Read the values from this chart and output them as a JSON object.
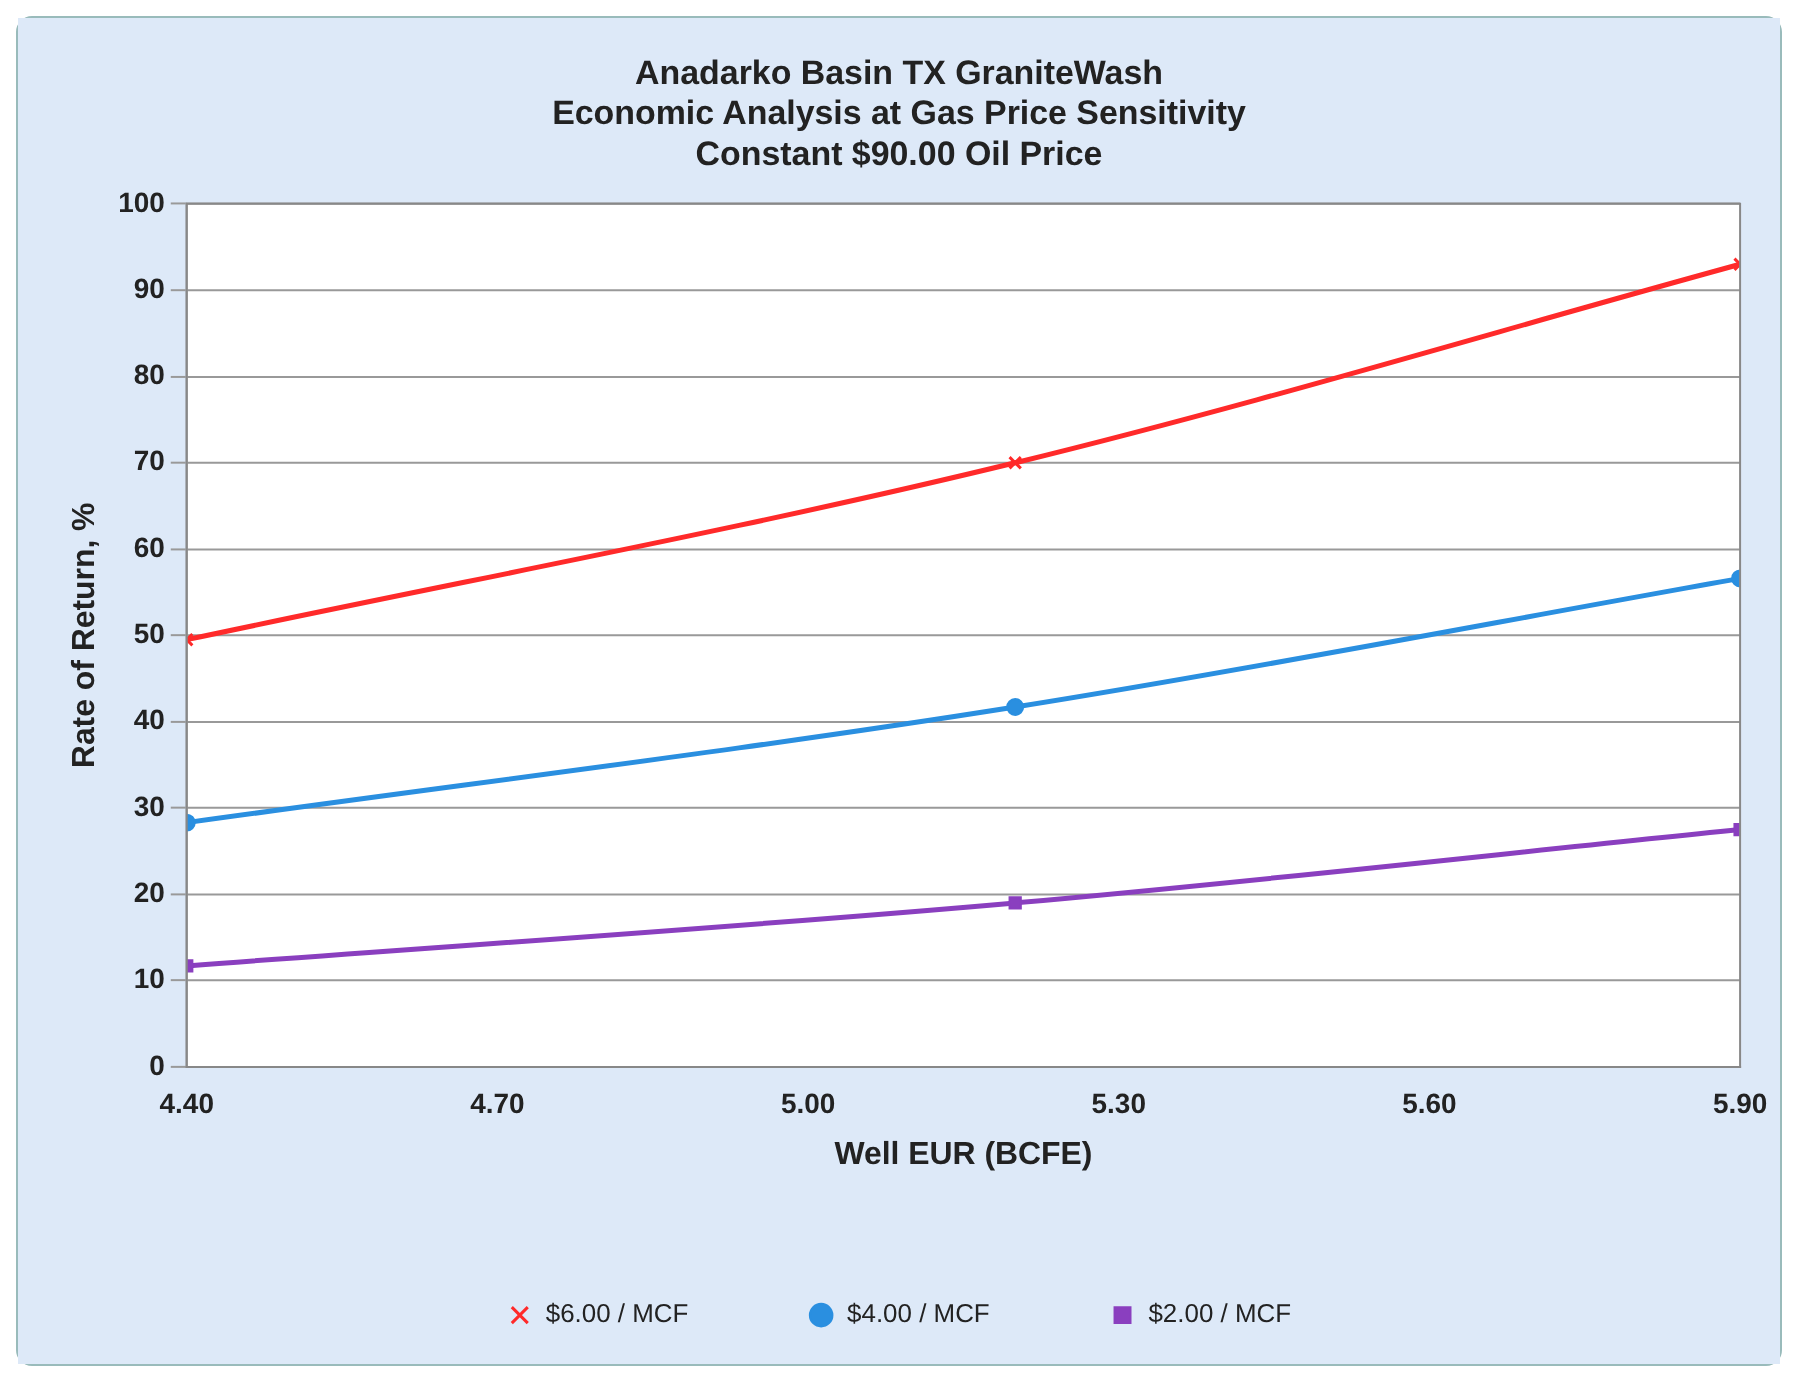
{
  "chart_data": {
    "type": "line",
    "title": [
      "Anadarko Basin TX GraniteWash",
      "Economic Analysis at Gas Price Sensitivity",
      "Constant $90.00 Oil Price"
    ],
    "xlabel": "Well EUR (BCFE)",
    "ylabel": "Rate of Return, %",
    "x": [
      4.4,
      5.2,
      5.9
    ],
    "series": [
      {
        "name": "$6.00 / MCF",
        "color": "#ff2a2a",
        "values": [
          49.5,
          70,
          93
        ],
        "marker": "cross"
      },
      {
        "name": "$4.00 / MCF",
        "color": "#2a8fe0",
        "values": [
          28.3,
          41.7,
          56.6
        ],
        "marker": "circle"
      },
      {
        "name": "$2.00 / MCF",
        "color": "#8a3fbf",
        "values": [
          11.7,
          19,
          27.5
        ],
        "marker": "square"
      }
    ],
    "xlim": [
      4.4,
      5.9
    ],
    "xticks": [
      {
        "value": 4.4,
        "label": "4.40"
      },
      {
        "value": 4.7,
        "label": "4.70"
      },
      {
        "value": 5.0,
        "label": "5.00"
      },
      {
        "value": 5.3,
        "label": "5.30"
      },
      {
        "value": 5.6,
        "label": "5.60"
      },
      {
        "value": 5.9,
        "label": "5.90"
      }
    ],
    "ylim": [
      0,
      100
    ],
    "yticks": [
      0,
      10,
      20,
      30,
      40,
      50,
      60,
      70,
      80,
      90,
      100
    ],
    "grid": "y",
    "legend": "bottom"
  }
}
